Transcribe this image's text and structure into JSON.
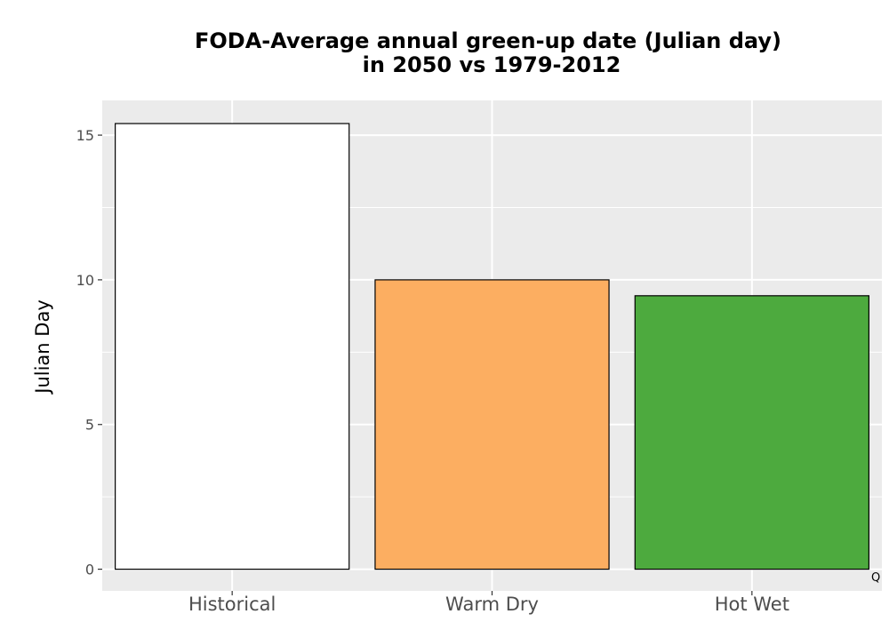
{
  "chart_data": {
    "type": "bar",
    "title": [
      "FODA-Average annual green-up date (Julian day)",
      "in 2050 vs 1979-2012"
    ],
    "xlabel": "",
    "ylabel": "Julian Day",
    "categories": [
      "Historical",
      "Warm Dry",
      "Hot Wet"
    ],
    "values": [
      15.4,
      10.0,
      9.45
    ],
    "colors": [
      "#ffffff",
      "#fcae61",
      "#4daa3e"
    ],
    "bar_outline": "#000000",
    "ylim": [
      -0.75,
      16.2
    ],
    "yticks": [
      0,
      5,
      10,
      15
    ],
    "grid": true,
    "panel_background": "#ebebeb",
    "grid_color": "#ffffff",
    "annotation": "Q"
  }
}
